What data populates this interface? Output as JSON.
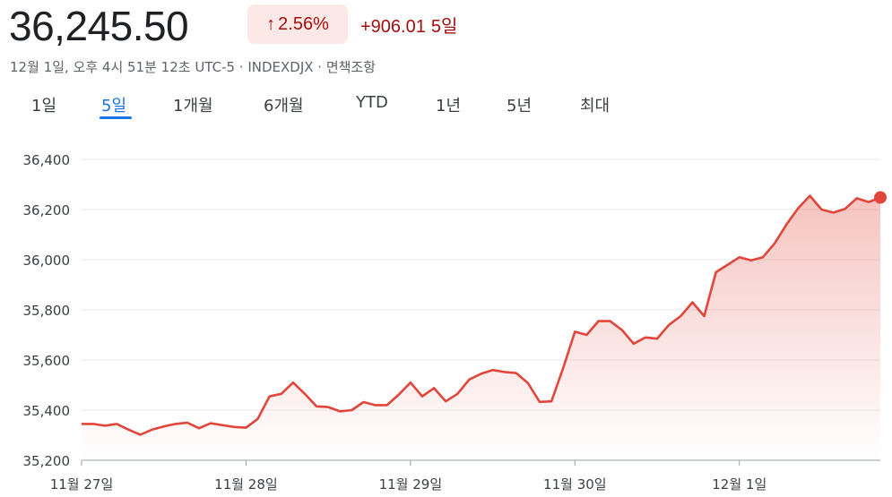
{
  "quote": {
    "price": "36,245.50",
    "percent_change": "2.56%",
    "absolute_change": "+906.01",
    "period_label": "5일",
    "meta": "12월 1일, 오후 4시 51분 12초 UTC-5 · INDEXDJX · 면책조항",
    "colors": {
      "down_accent": "#a50e0e",
      "badge_bg": "#fce8e6"
    }
  },
  "tabs": [
    {
      "label": "1일"
    },
    {
      "label": "5일",
      "active": true
    },
    {
      "label": "1개월"
    },
    {
      "label": "6개월"
    },
    {
      "label": "YTD"
    },
    {
      "label": "1년"
    },
    {
      "label": "5년"
    },
    {
      "label": "최대"
    }
  ],
  "chart_data": {
    "type": "area",
    "title": "",
    "xlabel": "",
    "ylabel": "",
    "ylim": [
      35200,
      36400
    ],
    "yticks": [
      "35,200",
      "35,400",
      "35,600",
      "35,800",
      "36,000",
      "36,200",
      "36,400"
    ],
    "ytick_values": [
      35200,
      35400,
      35600,
      35800,
      36000,
      36200,
      36400
    ],
    "xticks": [
      {
        "label": "11월 27일",
        "x": 0
      },
      {
        "label": "11월 28일",
        "x": 14
      },
      {
        "label": "11월 29일",
        "x": 28
      },
      {
        "label": "11월 30일",
        "x": 42
      },
      {
        "label": "12월 1일",
        "x": 56
      }
    ],
    "grid": true,
    "line_color": "#e2463b",
    "series": [
      {
        "x": [
          0,
          1,
          2,
          3,
          4,
          5,
          6,
          7,
          8,
          9,
          10,
          11,
          12,
          13,
          14,
          15,
          16,
          17,
          18,
          19,
          20,
          21,
          22,
          23,
          24,
          25,
          26,
          27,
          28,
          29,
          30,
          31,
          32,
          33,
          34,
          35,
          36,
          37,
          38,
          39,
          40,
          41,
          42,
          43,
          44,
          45,
          46,
          47,
          48,
          49,
          50,
          51,
          52,
          53,
          54,
          55,
          56,
          57,
          58,
          59,
          60,
          61,
          62,
          63,
          64,
          65,
          66,
          67,
          68
        ],
        "values": [
          35345,
          35345,
          35338,
          35345,
          35322,
          35302,
          35322,
          35335,
          35345,
          35350,
          35328,
          35348,
          35340,
          35333,
          35330,
          35365,
          35455,
          35465,
          35510,
          35465,
          35415,
          35412,
          35395,
          35400,
          35432,
          35420,
          35420,
          35462,
          35510,
          35455,
          35488,
          35435,
          35465,
          35522,
          35545,
          35560,
          35552,
          35548,
          35508,
          35433,
          35435,
          35568,
          35713,
          35700,
          35755,
          35755,
          35720,
          35665,
          35690,
          35685,
          35740,
          35775,
          35830,
          35775,
          35950,
          35980,
          36010,
          35997,
          36010,
          36065,
          36140,
          36205,
          36255,
          36200,
          36188,
          36203,
          36245,
          36230,
          36248
        ]
      }
    ]
  }
}
